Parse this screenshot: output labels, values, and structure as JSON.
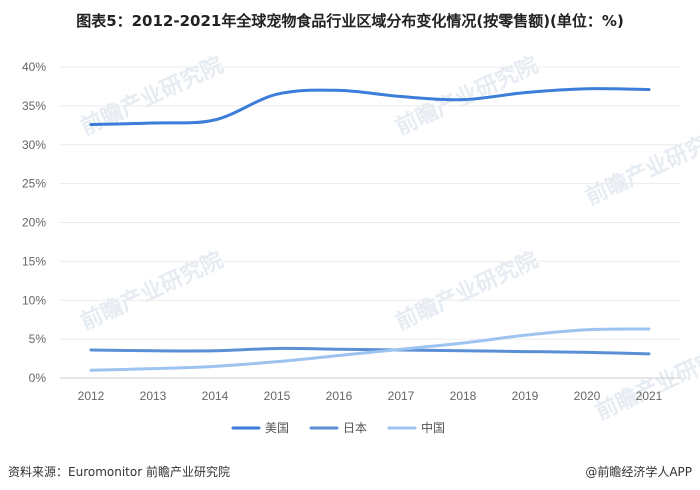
{
  "title": "图表5：2012-2021年全球宠物食品行业区域分布变化情况(按零售额)(单位：%)",
  "footer": {
    "source": "资料来源：Euromonitor 前瞻产业研究院",
    "brand": "@前瞻经济学人APP"
  },
  "watermark": "前瞻产业研究院",
  "chart_data": {
    "type": "line",
    "x": [
      "2012",
      "2013",
      "2014",
      "2015",
      "2016",
      "2017",
      "2018",
      "2019",
      "2020",
      "2021"
    ],
    "ylim": [
      0,
      40
    ],
    "y_ticks": [
      "0%",
      "5%",
      "10%",
      "15%",
      "20%",
      "25%",
      "30%",
      "35%",
      "40%"
    ],
    "grid": "horizontal",
    "legend_position": "bottom",
    "series": [
      {
        "name": "美国",
        "color": "#3b7dd8",
        "values": [
          32.6,
          32.8,
          33.2,
          36.5,
          37.0,
          36.2,
          35.8,
          36.7,
          37.2,
          37.1
        ]
      },
      {
        "name": "日本",
        "color": "#5a8fd6",
        "values": [
          3.6,
          3.5,
          3.5,
          3.8,
          3.7,
          3.6,
          3.5,
          3.4,
          3.3,
          3.1
        ]
      },
      {
        "name": "中国",
        "color": "#9dc3f0",
        "values": [
          1.0,
          1.2,
          1.5,
          2.1,
          2.9,
          3.7,
          4.5,
          5.5,
          6.2,
          6.3
        ]
      }
    ]
  }
}
